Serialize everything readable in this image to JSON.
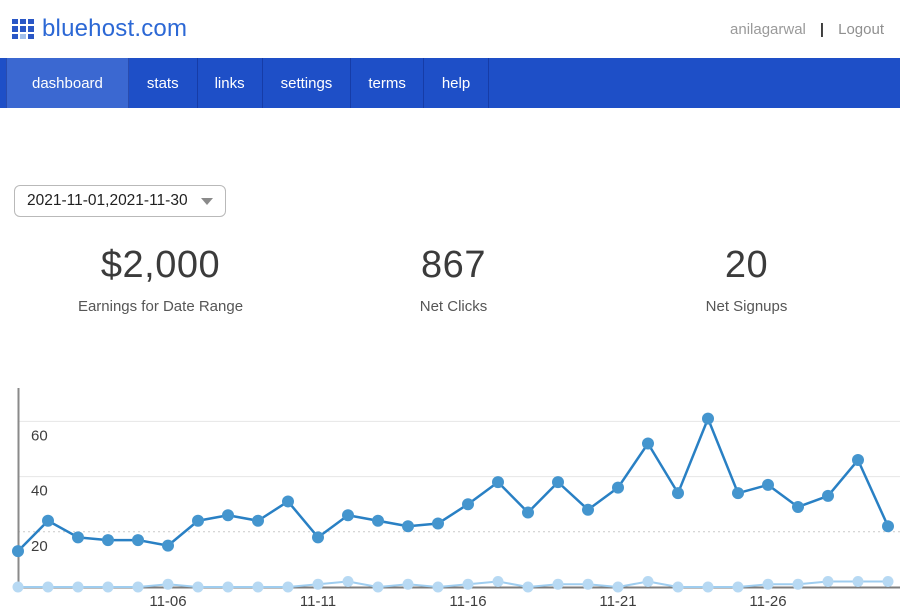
{
  "header": {
    "logo_text": "bluehost.com",
    "username": "anilagarwal",
    "separator": "|",
    "logout_label": "Logout"
  },
  "nav": {
    "items": [
      {
        "label": "dashboard",
        "active": true
      },
      {
        "label": "stats",
        "active": false
      },
      {
        "label": "links",
        "active": false
      },
      {
        "label": "settings",
        "active": false
      },
      {
        "label": "terms",
        "active": false
      },
      {
        "label": "help",
        "active": false
      }
    ]
  },
  "filters": {
    "date_range": "2021-11-01,2021-11-30"
  },
  "stats": [
    {
      "value": "$2,000",
      "label": "Earnings for Date Range"
    },
    {
      "value": "867",
      "label": "Net Clicks"
    },
    {
      "value": "20",
      "label": "Net Signups"
    }
  ],
  "colors": {
    "brand_blue": "#2c68d5",
    "nav_bg": "#1e4fc7",
    "nav_active_bg": "#3b68d1"
  },
  "chart_data": {
    "type": "line",
    "x": [
      "11-01",
      "11-02",
      "11-03",
      "11-04",
      "11-05",
      "11-06",
      "11-07",
      "11-08",
      "11-09",
      "11-10",
      "11-11",
      "11-12",
      "11-13",
      "11-14",
      "11-15",
      "11-16",
      "11-17",
      "11-18",
      "11-19",
      "11-20",
      "11-21",
      "11-22",
      "11-23",
      "11-24",
      "11-25",
      "11-26",
      "11-27",
      "11-28",
      "11-29",
      "11-30"
    ],
    "series": [
      {
        "name": "clicks",
        "line_color": "#2980c4",
        "dot_color": "#4495ce",
        "values": [
          13,
          24,
          18,
          17,
          17,
          15,
          24,
          26,
          24,
          31,
          18,
          26,
          24,
          22,
          23,
          30,
          38,
          27,
          38,
          28,
          36,
          52,
          34,
          61,
          34,
          37,
          29,
          33,
          46,
          22
        ]
      },
      {
        "name": "signups",
        "line_color": "#9fcdef",
        "dot_color": "#b7d9f3",
        "values": [
          0,
          0,
          0,
          0,
          0,
          1,
          0,
          0,
          0,
          0,
          1,
          2,
          0,
          1,
          0,
          1,
          2,
          0,
          1,
          1,
          0,
          2,
          0,
          0,
          0,
          1,
          1,
          2,
          2,
          2
        ]
      }
    ],
    "tick_indices": [
      5,
      10,
      15,
      20,
      25
    ],
    "tick_labels": [
      "11-06",
      "11-11",
      "11-16",
      "11-21",
      "11-26"
    ],
    "yticks": [
      20,
      40,
      60
    ],
    "ylim": [
      0,
      72
    ],
    "grid": true,
    "legend": "none",
    "xlabel": "",
    "ylabel": ""
  }
}
